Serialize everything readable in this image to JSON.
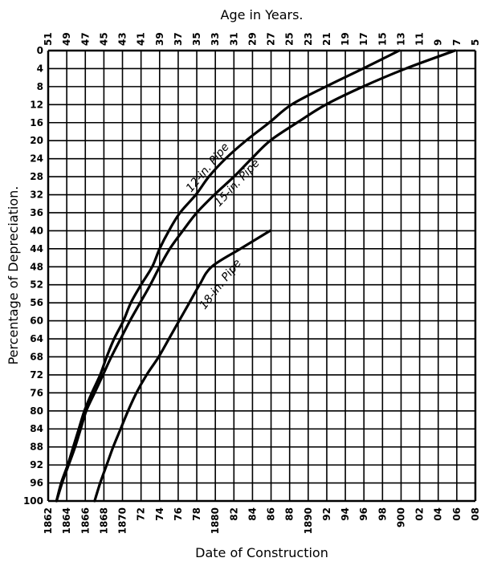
{
  "chart_data": {
    "type": "line",
    "title": "",
    "xlabel": "Date of Construction",
    "x2label": "Age in Years.",
    "ylabel": "Percentage of Depreciation.",
    "xlim": [
      1862,
      1908
    ],
    "ylim": [
      0,
      100
    ],
    "y_inverted": true,
    "grid": true,
    "x_tick_labels": [
      "1862",
      "1864",
      "1866",
      "1868",
      "1870",
      "72",
      "74",
      "76",
      "78",
      "1880",
      "82",
      "84",
      "86",
      "88",
      "1890",
      "92",
      "94",
      "96",
      "98",
      "900",
      "02",
      "04",
      "06",
      "08"
    ],
    "x2_tick_labels": [
      "51",
      "49",
      "47",
      "45",
      "43",
      "41",
      "39",
      "37",
      "35",
      "33",
      "31",
      "29",
      "27",
      "25",
      "23",
      "21",
      "19",
      "17",
      "15",
      "13",
      "11",
      "9",
      "7",
      "5"
    ],
    "y_tick_labels": [
      "0",
      "4",
      "8",
      "12",
      "16",
      "20",
      "24",
      "28",
      "32",
      "36",
      "40",
      "44",
      "48",
      "52",
      "56",
      "60",
      "64",
      "68",
      "72",
      "76",
      "80",
      "84",
      "88",
      "92",
      "96",
      "100"
    ],
    "series": [
      {
        "name": "12-in. Pipe",
        "points": [
          [
            1862.9,
            100
          ],
          [
            1863.4,
            96
          ],
          [
            1864.1,
            92
          ],
          [
            1864.7,
            88
          ],
          [
            1865.3,
            84
          ],
          [
            1865.9,
            80
          ],
          [
            1866.7,
            76
          ],
          [
            1867.6,
            72
          ],
          [
            1868.3,
            68
          ],
          [
            1869.1,
            64
          ],
          [
            1870.1,
            60
          ],
          [
            1870.9,
            56
          ],
          [
            1872,
            52
          ],
          [
            1873.2,
            48
          ],
          [
            1874,
            44
          ],
          [
            1875,
            40
          ],
          [
            1876.2,
            36
          ],
          [
            1877.9,
            32
          ],
          [
            1879.3,
            28
          ],
          [
            1881.1,
            24
          ],
          [
            1883.3,
            20
          ],
          [
            1885.8,
            16
          ],
          [
            1888.2,
            12
          ],
          [
            1891.9,
            8
          ],
          [
            1895.9,
            4
          ],
          [
            1899.8,
            0
          ]
        ]
      },
      {
        "name": "15-in. Pipe",
        "points": [
          [
            1862.9,
            100
          ],
          [
            1863.5,
            96
          ],
          [
            1864.2,
            92
          ],
          [
            1864.9,
            88
          ],
          [
            1865.5,
            84
          ],
          [
            1866.1,
            80
          ],
          [
            1867,
            76
          ],
          [
            1867.9,
            72
          ],
          [
            1868.8,
            68
          ],
          [
            1869.8,
            64
          ],
          [
            1870.8,
            60
          ],
          [
            1871.9,
            56
          ],
          [
            1873,
            52
          ],
          [
            1874,
            48
          ],
          [
            1875.1,
            44
          ],
          [
            1876.5,
            40
          ],
          [
            1878,
            36
          ],
          [
            1879.9,
            32
          ],
          [
            1882,
            28
          ],
          [
            1883.9,
            24
          ],
          [
            1885.9,
            20
          ],
          [
            1888.8,
            16
          ],
          [
            1891.9,
            12
          ],
          [
            1895.9,
            8
          ],
          [
            1900.5,
            4
          ],
          [
            1905.8,
            0
          ]
        ]
      },
      {
        "name": "18-in. Pipe",
        "points": [
          [
            1867,
            100
          ],
          [
            1867.6,
            96
          ],
          [
            1868.3,
            92
          ],
          [
            1869,
            88
          ],
          [
            1869.8,
            84
          ],
          [
            1870.6,
            80
          ],
          [
            1871.5,
            76
          ],
          [
            1872.6,
            72
          ],
          [
            1873.9,
            68
          ],
          [
            1875,
            64
          ],
          [
            1876.1,
            60
          ],
          [
            1877.2,
            56
          ],
          [
            1878.3,
            52
          ],
          [
            1879.6,
            48
          ],
          [
            1882.7,
            44
          ],
          [
            1885.9,
            40
          ]
        ]
      }
    ]
  }
}
